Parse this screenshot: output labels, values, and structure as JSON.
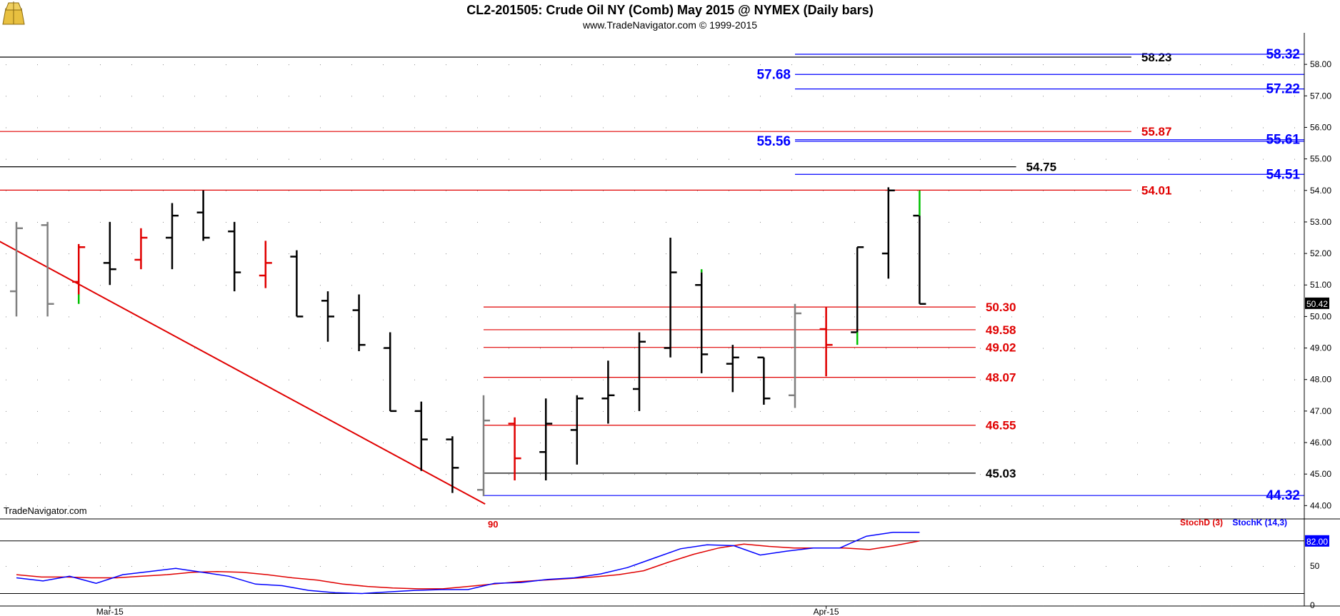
{
  "header": {
    "title": "CL2-201505:  Crude Oil NY (Comb) May 2015 @ NYMEX  (Daily bars)",
    "subtitle": "www.TradeNavigator.com © 1999-2015",
    "watermark": "TradeNavigator.com",
    "logo": "tradenavigator-logo"
  },
  "colors": {
    "bar_black": "#000000",
    "bar_red": "#e00000",
    "bar_gray": "#808080",
    "bar_green": "#00c000",
    "level_red": "#e00000",
    "level_blue": "#0000ff",
    "level_black": "#000000",
    "stoch_d": "#e00000",
    "stoch_k": "#0000ff"
  },
  "chart_data": [
    {
      "type": "ohlc",
      "ylim": [
        43.6,
        59.0
      ],
      "y_ticks": [
        "44.00",
        "45.00",
        "46.00",
        "47.00",
        "48.00",
        "49.00",
        "50.00",
        "51.00",
        "52.00",
        "53.00",
        "54.00",
        "55.00",
        "56.00",
        "57.00",
        "58.00"
      ],
      "x_labels": [
        {
          "label": "Mar-15",
          "bar_index": 3
        },
        {
          "label": "Apr-15",
          "bar_index": 26
        }
      ],
      "last_price": "50.42",
      "bars": [
        {
          "o": 50.8,
          "h": 53.0,
          "l": 50.0,
          "c": 52.8,
          "color": "gray"
        },
        {
          "o": 52.9,
          "h": 53.0,
          "l": 50.0,
          "c": 50.4,
          "color": "gray"
        },
        {
          "o": 51.1,
          "h": 52.3,
          "l": 50.7,
          "c": 52.2,
          "color": "red",
          "green_tail": 50.4
        },
        {
          "o": 51.7,
          "h": 53.0,
          "l": 51.0,
          "c": 51.5,
          "color": "black"
        },
        {
          "o": 51.8,
          "h": 52.8,
          "l": 51.5,
          "c": 52.5,
          "color": "red"
        },
        {
          "o": 52.5,
          "h": 53.6,
          "l": 51.5,
          "c": 53.2,
          "color": "black"
        },
        {
          "o": 53.3,
          "h": 54.0,
          "l": 52.4,
          "c": 52.5,
          "color": "black"
        },
        {
          "o": 52.7,
          "h": 53.0,
          "l": 50.8,
          "c": 51.4,
          "color": "black"
        },
        {
          "o": 51.3,
          "h": 52.4,
          "l": 50.9,
          "c": 51.7,
          "color": "red"
        },
        {
          "o": 51.9,
          "h": 52.1,
          "l": 50.0,
          "c": 50.0,
          "color": "black"
        },
        {
          "o": 50.5,
          "h": 50.8,
          "l": 49.2,
          "c": 50.0,
          "color": "black"
        },
        {
          "o": 50.2,
          "h": 50.7,
          "l": 48.9,
          "c": 49.1,
          "color": "black"
        },
        {
          "o": 49.0,
          "h": 49.5,
          "l": 47.0,
          "c": 47.0,
          "color": "black"
        },
        {
          "o": 47.0,
          "h": 47.3,
          "l": 45.1,
          "c": 46.1,
          "color": "black"
        },
        {
          "o": 46.1,
          "h": 46.2,
          "l": 44.4,
          "c": 45.2,
          "color": "black"
        },
        {
          "o": 44.5,
          "h": 47.5,
          "l": 44.3,
          "c": 46.7,
          "color": "gray"
        },
        {
          "o": 46.6,
          "h": 46.8,
          "l": 44.8,
          "c": 45.5,
          "color": "red"
        },
        {
          "o": 45.7,
          "h": 47.4,
          "l": 44.8,
          "c": 46.6,
          "color": "black"
        },
        {
          "o": 46.4,
          "h": 47.5,
          "l": 45.3,
          "c": 47.4,
          "color": "black"
        },
        {
          "o": 47.4,
          "h": 48.6,
          "l": 46.6,
          "c": 47.5,
          "color": "black"
        },
        {
          "o": 47.7,
          "h": 49.5,
          "l": 47.0,
          "c": 49.2,
          "color": "black"
        },
        {
          "o": 49.0,
          "h": 52.5,
          "l": 48.7,
          "c": 51.4,
          "color": "black"
        },
        {
          "o": 51.0,
          "h": 51.4,
          "l": 48.2,
          "c": 48.8,
          "color": "black",
          "green_head": 51.5
        },
        {
          "o": 48.5,
          "h": 49.1,
          "l": 47.6,
          "c": 48.7,
          "color": "black"
        },
        {
          "o": 48.7,
          "h": 48.7,
          "l": 47.2,
          "c": 47.4,
          "color": "black"
        },
        {
          "o": 47.5,
          "h": 50.4,
          "l": 47.1,
          "c": 50.1,
          "color": "gray"
        },
        {
          "o": 49.6,
          "h": 50.3,
          "l": 48.1,
          "c": 49.1,
          "color": "red"
        },
        {
          "o": 49.5,
          "h": 52.2,
          "l": 49.5,
          "c": 52.2,
          "color": "black",
          "green_tail": 49.1
        },
        {
          "o": 52.0,
          "h": 54.1,
          "l": 51.2,
          "c": 54.0,
          "color": "black"
        },
        {
          "o": 53.2,
          "h": 53.2,
          "l": 50.4,
          "c": 50.4,
          "color": "black",
          "green_head": 54.0
        }
      ],
      "trendline": {
        "from": {
          "bar": -1.6,
          "price": 52.95
        },
        "to": {
          "bar": 15.05,
          "price": 44.05
        },
        "color": "red"
      },
      "levels": [
        {
          "price": 58.23,
          "label": "58.23",
          "color": "black",
          "from_bar": -1.7,
          "to_bar": 35.8,
          "label_side": "right-end"
        },
        {
          "price": 58.32,
          "label": "58.32",
          "color": "blue",
          "from_bar": 25.0,
          "to_bar": 41.4,
          "label_side": "axis"
        },
        {
          "price": 57.68,
          "label": "57.68",
          "color": "blue",
          "from_bar": 25.0,
          "to_bar": 41.4,
          "label_side": "left-start"
        },
        {
          "price": 57.22,
          "label": "57.22",
          "color": "blue",
          "from_bar": 25.0,
          "to_bar": 41.4,
          "label_side": "axis"
        },
        {
          "price": 55.87,
          "label": "55.87",
          "color": "red",
          "from_bar": -1.7,
          "to_bar": 35.8,
          "label_side": "right-end"
        },
        {
          "price": 55.61,
          "label": "55.61",
          "color": "blue",
          "from_bar": 25.0,
          "to_bar": 41.4,
          "label_side": "axis"
        },
        {
          "price": 55.56,
          "label": "55.56",
          "color": "blue",
          "from_bar": 25.0,
          "to_bar": 41.4,
          "label_side": "left-start"
        },
        {
          "price": 54.75,
          "label": "54.75",
          "color": "black",
          "from_bar": -1.7,
          "to_bar": 32.1,
          "label_side": "right-end"
        },
        {
          "price": 54.51,
          "label": "54.51",
          "color": "blue",
          "from_bar": 25.0,
          "to_bar": 41.4,
          "label_side": "axis"
        },
        {
          "price": 54.01,
          "label": "54.01",
          "color": "red",
          "from_bar": -1.7,
          "to_bar": 35.8,
          "label_side": "right-end"
        },
        {
          "price": 50.3,
          "label": "50.30",
          "color": "red",
          "from_bar": 15.0,
          "to_bar": 30.8,
          "label_side": "right-end"
        },
        {
          "price": 49.58,
          "label": "49.58",
          "color": "red",
          "from_bar": 15.0,
          "to_bar": 30.8,
          "label_side": "right-end"
        },
        {
          "price": 49.02,
          "label": "49.02",
          "color": "red",
          "from_bar": 15.0,
          "to_bar": 30.8,
          "label_side": "right-end"
        },
        {
          "price": 48.07,
          "label": "48.07",
          "color": "red",
          "from_bar": 15.0,
          "to_bar": 30.8,
          "label_side": "right-end"
        },
        {
          "price": 46.55,
          "label": "46.55",
          "color": "red",
          "from_bar": 15.0,
          "to_bar": 30.8,
          "label_side": "right-end"
        },
        {
          "price": 45.03,
          "label": "45.03",
          "color": "black",
          "from_bar": 15.0,
          "to_bar": 30.8,
          "label_side": "right-end"
        },
        {
          "price": 44.32,
          "label": "44.32",
          "color": "blue",
          "from_bar": 15.0,
          "to_bar": 41.4,
          "label_side": "axis"
        }
      ]
    },
    {
      "type": "line",
      "ylim": [
        0,
        100
      ],
      "y_ticks": [
        "0",
        "50"
      ],
      "legend": [
        "StochD (3)",
        "StochK (14,3)"
      ],
      "marker_label": "90",
      "last_value": "82.00",
      "reference_lines": [
        82,
        15
      ],
      "series": [
        {
          "name": "StochD (3)",
          "color": "red",
          "values": [
            39,
            36,
            36,
            35,
            35,
            37,
            39,
            42,
            43,
            42,
            39,
            35,
            32,
            27,
            24,
            22,
            21,
            21,
            24,
            27,
            30,
            32,
            34,
            36,
            39,
            44,
            55,
            65,
            73,
            78,
            75,
            73,
            73,
            73,
            71,
            76,
            82
          ]
        },
        {
          "name": "StochK (14,3)",
          "color": "blue",
          "values": [
            35,
            31,
            37,
            28,
            39,
            43,
            47,
            42,
            37,
            27,
            25,
            19,
            16,
            15,
            17,
            19,
            20,
            20,
            28,
            29,
            33,
            35,
            40,
            48,
            60,
            72,
            77,
            76,
            64,
            69,
            73,
            73,
            88,
            93,
            93
          ]
        }
      ]
    }
  ]
}
